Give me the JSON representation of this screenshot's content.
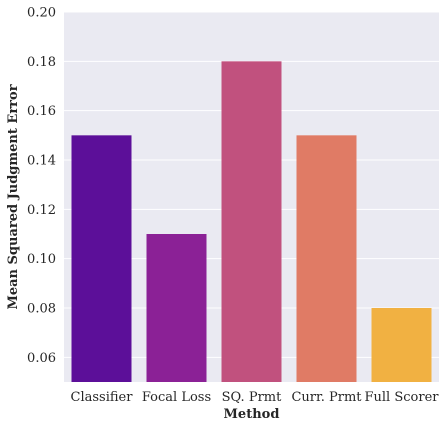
{
  "chart_data": {
    "type": "bar",
    "title": "",
    "xlabel": "Method",
    "ylabel": "Mean Squared Judgment Error",
    "categories": [
      "Classifier",
      "Focal Loss",
      "SQ. Prmt",
      "Curr. Prmt",
      "Full Scorer"
    ],
    "values": [
      0.15,
      0.11,
      0.18,
      0.15,
      0.08
    ],
    "colors": [
      "#5c0f99",
      "#8b2196",
      "#c1517e",
      "#e07b65",
      "#f1b142"
    ],
    "ylim": [
      0.05,
      0.2
    ],
    "yticks": [
      "0.06",
      "0.08",
      "0.10",
      "0.12",
      "0.14",
      "0.16",
      "0.18",
      "0.20"
    ],
    "grid": true,
    "plot_background": "#eaeaf2",
    "grid_color": "#ffffff"
  }
}
